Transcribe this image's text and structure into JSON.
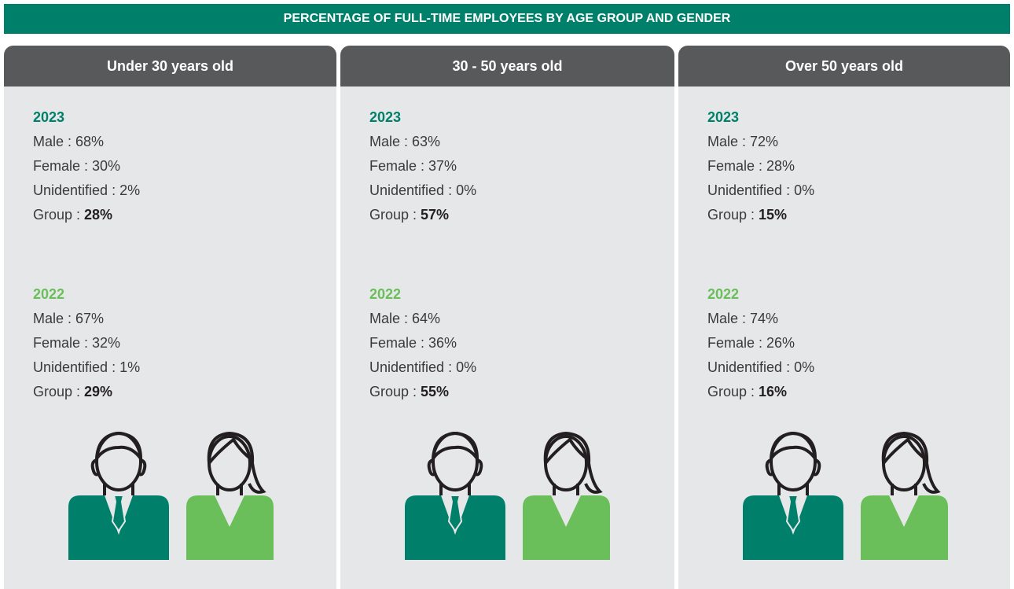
{
  "header": {
    "title": "PERCENTAGE OF FULL-TIME EMPLOYEES BY AGE GROUP AND GENDER"
  },
  "panels": [
    {
      "title": "Under 30 years old",
      "years": [
        {
          "year": "2023",
          "lines": [
            "Male : 68%",
            "Female : 30%",
            "Unidentified : 2%"
          ],
          "group": {
            "label": "Group :",
            "value": "28%"
          }
        },
        {
          "year": "2022",
          "lines": [
            "Male : 67%",
            "Female : 32%",
            "Unidentified : 1%"
          ],
          "group": {
            "label": "Group :",
            "value": "29%"
          }
        }
      ]
    },
    {
      "title": "30 - 50 years old",
      "years": [
        {
          "year": "2023",
          "lines": [
            "Male : 63%",
            "Female : 37%",
            "Unidentified : 0%"
          ],
          "group": {
            "label": "Group :",
            "value": "57%"
          }
        },
        {
          "year": "2022",
          "lines": [
            "Male : 64%",
            "Female : 36%",
            "Unidentified : 0%"
          ],
          "group": {
            "label": "Group :",
            "value": "55%"
          }
        }
      ]
    },
    {
      "title": "Over 50 years old",
      "years": [
        {
          "year": "2023",
          "lines": [
            "Male : 72%",
            "Female : 28%",
            "Unidentified : 0%"
          ],
          "group": {
            "label": "Group :",
            "value": "15%"
          }
        },
        {
          "year": "2022",
          "lines": [
            "Male : 74%",
            "Female : 26%",
            "Unidentified : 0%"
          ],
          "group": {
            "label": "Group :",
            "value": "16%"
          }
        }
      ]
    }
  ]
}
